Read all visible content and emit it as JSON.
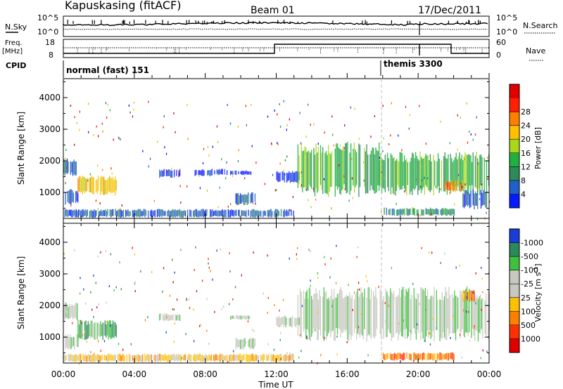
{
  "header": {
    "station": "Kapuskasing (fitACF)",
    "beam": "Beam 01",
    "date": "17/Dec/2011"
  },
  "top_panels": {
    "nsky_label": "N.Sky",
    "nsky_ticks": [
      "10^5",
      "10^0"
    ],
    "nsearch_label": "N.Search",
    "nsearch_ticks": [
      "10^5",
      "10^0"
    ],
    "freq_label": "Freq.",
    "freq_unit": "[MHz]",
    "freq_ticks": [
      "18",
      "8"
    ],
    "nave_label": "Nave",
    "nave_ticks": [
      "60",
      "0"
    ],
    "cpid_label": "CPID",
    "cpid_segments": [
      {
        "start": 0,
        "end": 18,
        "label": "normal (fast) 151"
      },
      {
        "start": 18,
        "end": 24,
        "label": "themis 3300"
      }
    ]
  },
  "chart_data": [
    {
      "type": "heatmap",
      "panel": "power",
      "ylabel": "Slant Range [km]",
      "yticks": [
        "1000",
        "2000",
        "3000",
        "4000"
      ],
      "ylim": [
        180,
        4600
      ],
      "xlim": [
        0,
        24
      ],
      "colorbar_label": "Power [dB]",
      "colorbar_ticks": [
        "4",
        "8",
        "12",
        "16",
        "20",
        "24",
        "28"
      ],
      "colorbar_colors": [
        "#0a1aff",
        "#2060c8",
        "#2e8a5a",
        "#20b040",
        "#a8d818",
        "#ffc000",
        "#ff8000",
        "#ff2000",
        "#e00000"
      ],
      "echo_regions": [
        {
          "t0": 0.0,
          "t1": 0.7,
          "r0": 1500,
          "r1": 2100,
          "level": 1
        },
        {
          "t0": 0.1,
          "t1": 0.8,
          "r0": 600,
          "r1": 1100,
          "level": 1
        },
        {
          "t0": 0.8,
          "t1": 3.0,
          "r0": 900,
          "r1": 1550,
          "level": 5
        },
        {
          "t0": 5.4,
          "t1": 6.6,
          "r0": 1450,
          "r1": 1750,
          "level": 0
        },
        {
          "t0": 7.4,
          "t1": 8.4,
          "r0": 1500,
          "r1": 1750,
          "level": 0
        },
        {
          "t0": 8.5,
          "t1": 9.2,
          "r0": 1550,
          "r1": 1750,
          "level": 0
        },
        {
          "t0": 9.4,
          "t1": 10.6,
          "r0": 1550,
          "r1": 1700,
          "level": 0
        },
        {
          "t0": 9.7,
          "t1": 10.8,
          "r0": 600,
          "r1": 1000,
          "level": 1
        },
        {
          "t0": 12.0,
          "t1": 13.3,
          "r0": 1300,
          "r1": 1700,
          "level": 0
        },
        {
          "t0": 13.2,
          "t1": 17.8,
          "r0": 850,
          "r1": 2600,
          "level": 3
        },
        {
          "t0": 17.8,
          "t1": 24.0,
          "r0": 900,
          "r1": 2300,
          "level": 3
        },
        {
          "t0": 21.5,
          "t1": 22.5,
          "r0": 1000,
          "r1": 1400,
          "level": 6
        },
        {
          "t0": 18.0,
          "t1": 22.0,
          "r0": 250,
          "r1": 520,
          "level": 2
        },
        {
          "t0": 0.0,
          "t1": 13.0,
          "r0": 200,
          "r1": 480,
          "level": 1
        },
        {
          "t0": 22.5,
          "t1": 24.0,
          "r0": 450,
          "r1": 1100,
          "level": 1
        }
      ]
    },
    {
      "type": "heatmap",
      "panel": "velocity",
      "ylabel": "Slant Range [km]",
      "yticks": [
        "1000",
        "2000",
        "3000",
        "4000"
      ],
      "ylim": [
        180,
        4600
      ],
      "xlim": [
        0,
        24
      ],
      "xlabel": "Time UT",
      "xticks": [
        "00:00",
        "04:00",
        "08:00",
        "12:00",
        "16:00",
        "20:00",
        "00:00"
      ],
      "colorbar_label": "Velocity [m s",
      "colorbar_label_sup": "-1",
      "colorbar_label_end": "]",
      "colorbar_ticks": [
        "1000",
        "500",
        "100",
        "25",
        "-25",
        "-100",
        "-500",
        "-1000"
      ],
      "colorbar_colors": [
        "#1c3cd8",
        "#2a8a5a",
        "#40c040",
        "#c8c8c0",
        "#c8c8c0",
        "#ffc000",
        "#ff8000",
        "#ff3000",
        "#e00000"
      ],
      "echo_regions": [
        {
          "t0": 0.0,
          "t1": 0.8,
          "r0": 1500,
          "r1": 2100,
          "level": 3
        },
        {
          "t0": 0.1,
          "t1": 0.8,
          "r0": 600,
          "r1": 1100,
          "level": 3
        },
        {
          "t0": 0.8,
          "t1": 3.0,
          "r0": 900,
          "r1": 1550,
          "level": 2
        },
        {
          "t0": 5.4,
          "t1": 6.6,
          "r0": 1500,
          "r1": 1750,
          "level": 3
        },
        {
          "t0": 9.4,
          "t1": 10.6,
          "r0": 1550,
          "r1": 1700,
          "level": 3
        },
        {
          "t0": 9.7,
          "t1": 10.8,
          "r0": 600,
          "r1": 1000,
          "level": 3
        },
        {
          "t0": 12.0,
          "t1": 13.3,
          "r0": 1300,
          "r1": 1700,
          "level": 3
        },
        {
          "t0": 13.2,
          "t1": 24.0,
          "r0": 850,
          "r1": 2600,
          "level": 3
        },
        {
          "t0": 22.5,
          "t1": 23.2,
          "r0": 2100,
          "r1": 2500,
          "level": 6
        },
        {
          "t0": 18.0,
          "t1": 22.0,
          "r0": 250,
          "r1": 520,
          "level": 6
        },
        {
          "t0": 0.0,
          "t1": 13.0,
          "r0": 200,
          "r1": 480,
          "level": 5
        }
      ]
    }
  ]
}
